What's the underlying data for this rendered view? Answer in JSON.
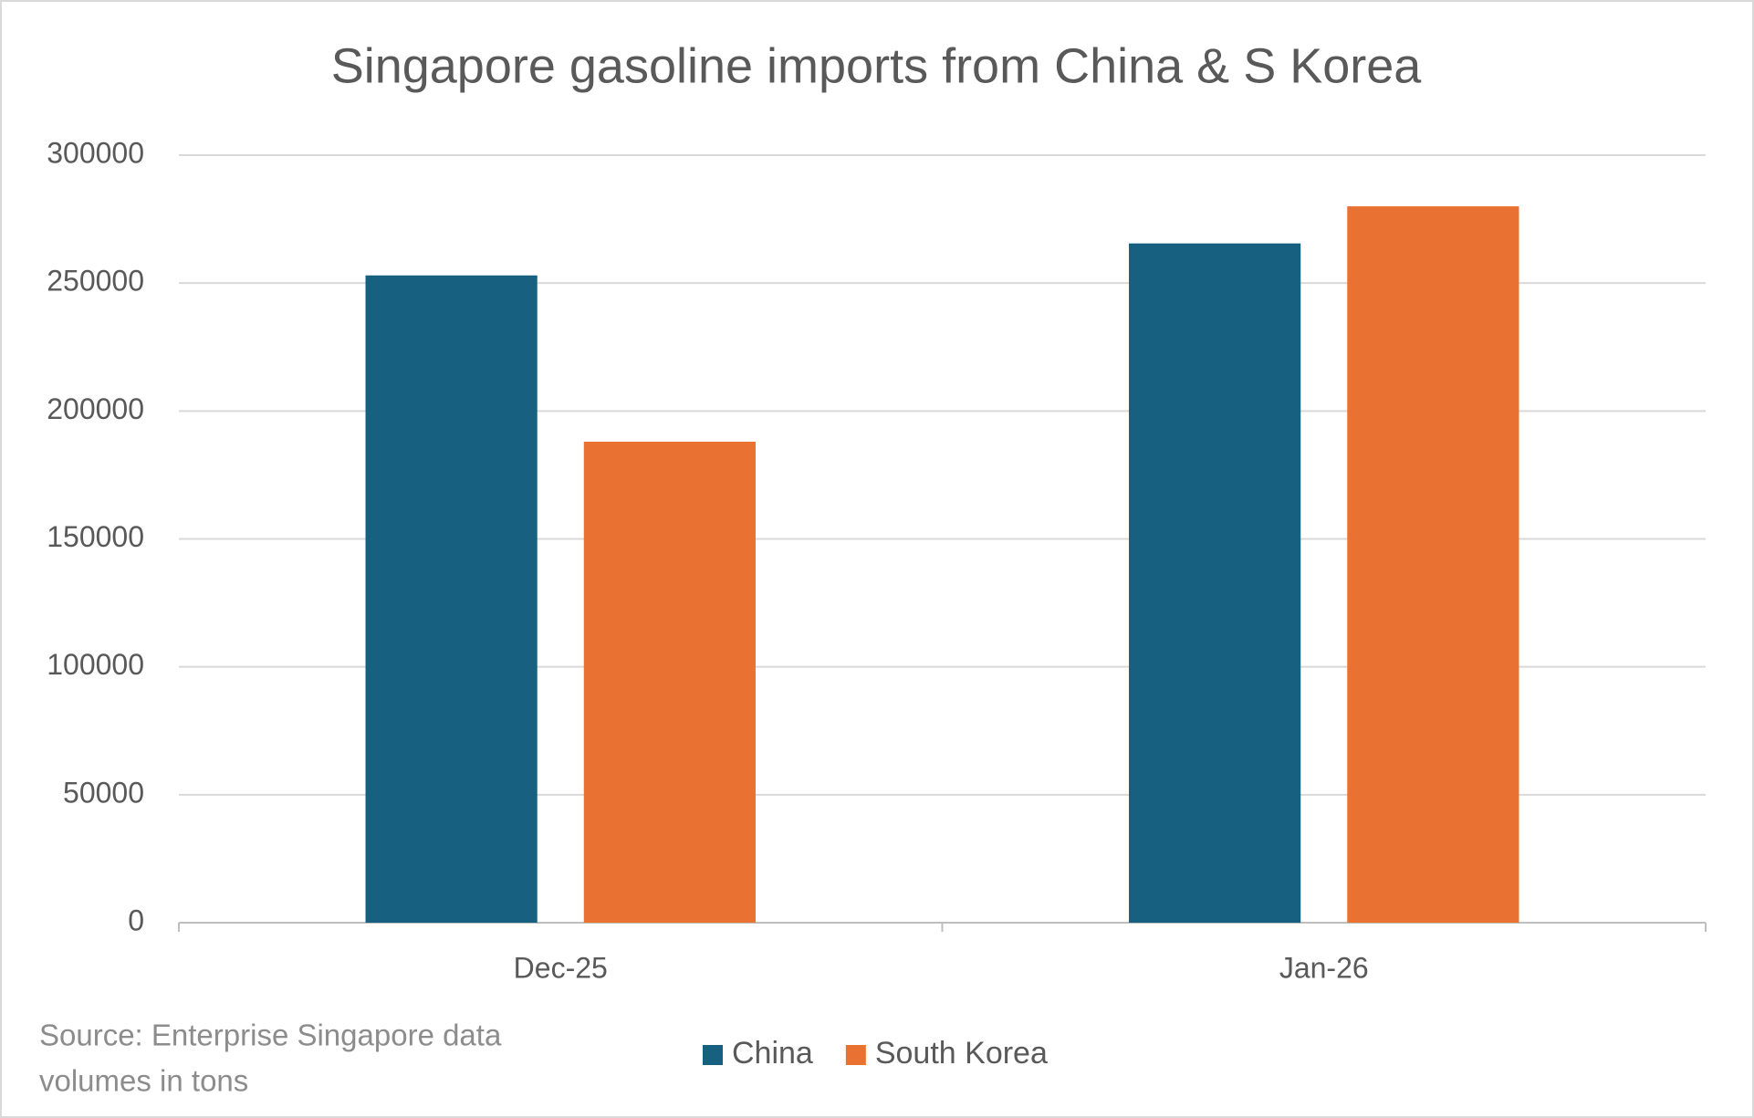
{
  "chart_data": {
    "type": "bar",
    "title": "Singapore gasoline imports from China & S Korea",
    "categories": [
      "Dec-25",
      "Jan-26"
    ],
    "series": [
      {
        "name": "China",
        "color": "#17607f",
        "values": [
          253000,
          265500
        ]
      },
      {
        "name": "South Korea",
        "color": "#e97132",
        "values": [
          188000,
          280000
        ]
      }
    ],
    "ylim": [
      0,
      300000
    ],
    "yticks": [
      0,
      50000,
      100000,
      150000,
      200000,
      250000,
      300000
    ],
    "grid": true,
    "legend": "bottom",
    "source": "Source: Enterprise Singapore data",
    "note": "volumes in tons"
  }
}
